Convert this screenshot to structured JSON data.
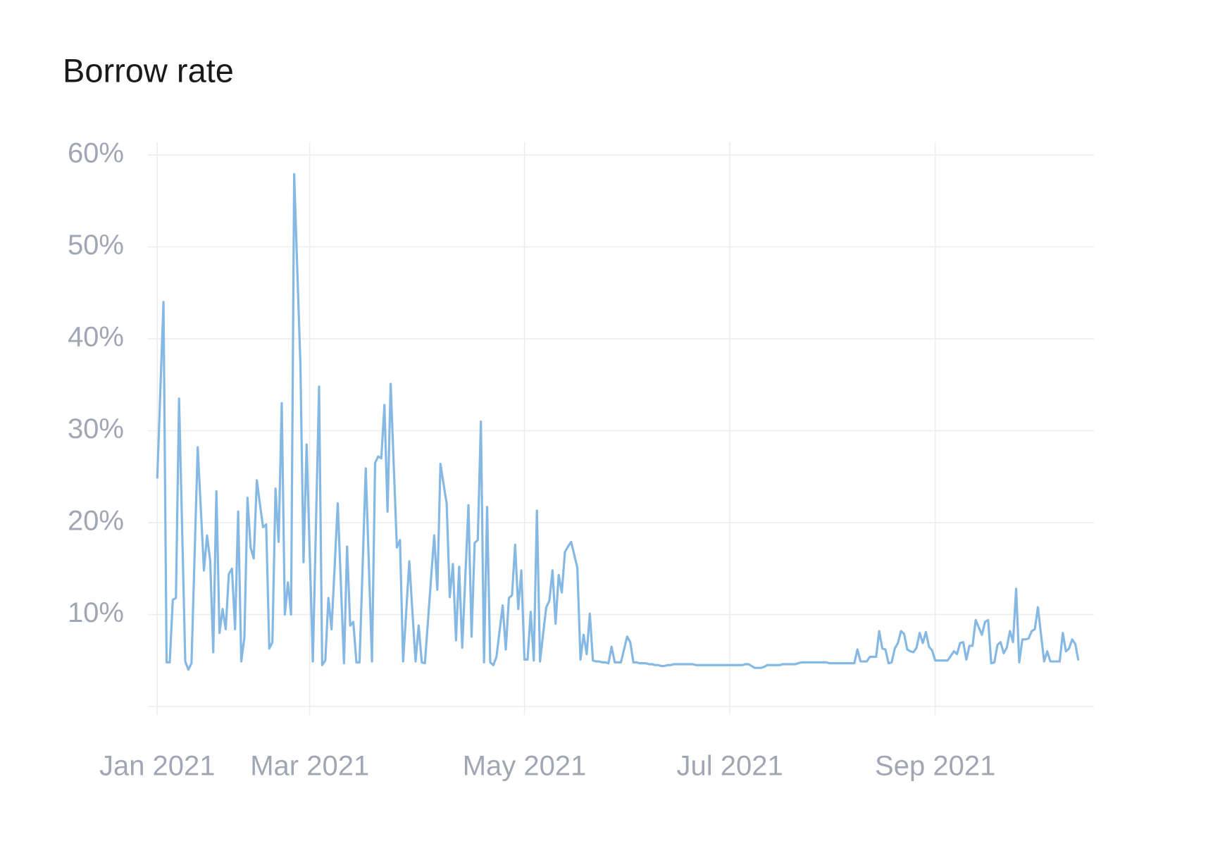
{
  "chart_data": {
    "type": "line",
    "title": "Borrow rate",
    "values": [
      24.8,
      34.4,
      44,
      4.8,
      4.8,
      11.6,
      11.8,
      33.5,
      19.2,
      4.9,
      4.0,
      4.7,
      16.5,
      28.2,
      21.5,
      14.8,
      18.6,
      15.9,
      5.9,
      23.4,
      8.0,
      10.6,
      8.4,
      14.4,
      15.0,
      8.4,
      21.2,
      4.9,
      7.5,
      22.7,
      17.3,
      16.1,
      24.6,
      22.0,
      19.5,
      19.8,
      6.3,
      7.0,
      23.7,
      17.9,
      33.0,
      10.0,
      13.5,
      10.0,
      57.9,
      47.5,
      37.2,
      15.7,
      28.5,
      16.7,
      4.9,
      19.8,
      34.8,
      4.5,
      5.0,
      11.8,
      8.4,
      15.2,
      22.1,
      13.4,
      4.7,
      17.4,
      8.8,
      9.2,
      4.8,
      4.8,
      15.3,
      25.9,
      15.4,
      4.9,
      26.5,
      27.2,
      27.0,
      32.8,
      21.2,
      35.1,
      26.2,
      17.3,
      18.1,
      4.9,
      10.3,
      15.8,
      10.3,
      4.9,
      8.8,
      4.8,
      4.7,
      9.3,
      14.0,
      18.6,
      12.7,
      26.4,
      24.2,
      22.1,
      11.9,
      15.5,
      7.2,
      15.2,
      6.4,
      14.1,
      21.9,
      7.6,
      17.8,
      18.1,
      31.0,
      4.8,
      21.7,
      4.8,
      4.5,
      5.4,
      8.2,
      11.0,
      6.2,
      11.8,
      12.1,
      17.6,
      10.6,
      14.8,
      5.1,
      5.1,
      10.3,
      5.0,
      21.3,
      4.9,
      7.9,
      10.8,
      11.5,
      14.8,
      9.0,
      14.3,
      12.4,
      16.8,
      17.4,
      17.9,
      16.5,
      15.1,
      5.1,
      7.8,
      5.7,
      10.1,
      5.0,
      4.9,
      4.9,
      4.8,
      4.8,
      4.7,
      6.5,
      4.8,
      4.8,
      4.8,
      6.2,
      7.6,
      7.0,
      4.8,
      4.8,
      4.7,
      4.7,
      4.7,
      4.6,
      4.6,
      4.5,
      4.5,
      4.4,
      4.4,
      4.5,
      4.5,
      4.6,
      4.6,
      4.6,
      4.6,
      4.6,
      4.6,
      4.6,
      4.5,
      4.5,
      4.5,
      4.5,
      4.5,
      4.5,
      4.5,
      4.5,
      4.5,
      4.5,
      4.5,
      4.5,
      4.5,
      4.5,
      4.5,
      4.5,
      4.6,
      4.6,
      4.4,
      4.2,
      4.2,
      4.2,
      4.3,
      4.5,
      4.5,
      4.5,
      4.5,
      4.5,
      4.6,
      4.6,
      4.6,
      4.6,
      4.6,
      4.7,
      4.8,
      4.8,
      4.8,
      4.8,
      4.8,
      4.8,
      4.8,
      4.8,
      4.8,
      4.7,
      4.7,
      4.7,
      4.7,
      4.7,
      4.7,
      4.7,
      4.7,
      4.7,
      6.2,
      4.9,
      4.9,
      4.9,
      5.4,
      5.4,
      5.4,
      8.2,
      6.3,
      6.2,
      4.7,
      4.8,
      6.3,
      6.9,
      8.2,
      7.9,
      6.2,
      6.0,
      5.9,
      6.4,
      8.0,
      6.9,
      8.1,
      6.5,
      6.1,
      5.0,
      5.0,
      5.0,
      5.0,
      5.0,
      5.5,
      6.0,
      5.7,
      6.9,
      7.0,
      5.1,
      6.6,
      6.6,
      9.4,
      8.6,
      7.8,
      9.2,
      9.4,
      4.7,
      4.8,
      6.7,
      7.0,
      5.8,
      6.4,
      8.2,
      7.0,
      12.8,
      4.8,
      7.3,
      7.3,
      7.4,
      8.2,
      8.4,
      10.8,
      7.8,
      4.9,
      6.0,
      4.9,
      4.9,
      4.9,
      4.9,
      8.0,
      6.0,
      6.3,
      7.3,
      6.8,
      5.0
    ],
    "color": "#86b8e4",
    "xlim": [
      -3,
      301
    ],
    "xticks": [
      {
        "value": 0,
        "label": "Jan 2021"
      },
      {
        "value": 49,
        "label": "Mar 2021"
      },
      {
        "value": 118,
        "label": "May 2021"
      },
      {
        "value": 184,
        "label": "Jul 2021"
      },
      {
        "value": 250,
        "label": "Sep 2021"
      }
    ],
    "ylim": [
      0,
      60
    ],
    "yticks": [
      {
        "value": 10,
        "label": "10%"
      },
      {
        "value": 20,
        "label": "20%"
      },
      {
        "value": 30,
        "label": "30%"
      },
      {
        "value": 40,
        "label": "40%"
      },
      {
        "value": 50,
        "label": "50%"
      },
      {
        "value": 60,
        "label": "60%"
      }
    ],
    "grid": true
  }
}
